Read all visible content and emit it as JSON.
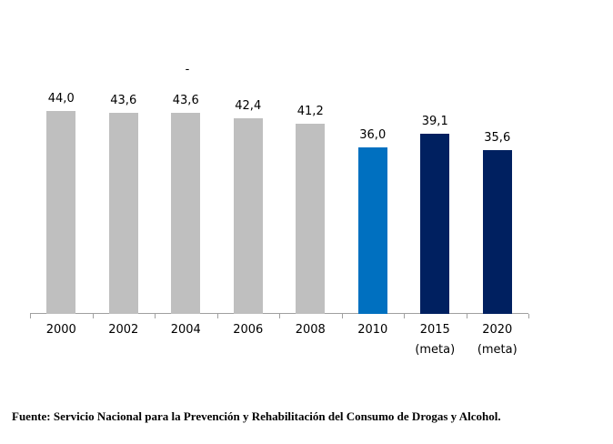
{
  "chart_data": {
    "type": "bar",
    "title": "-",
    "categories": [
      "2000",
      "2002",
      "2004",
      "2006",
      "2008",
      "2010",
      "2015",
      "2020"
    ],
    "category_sublabels": [
      "",
      "",
      "",
      "",
      "",
      "",
      "(meta)",
      "(meta)"
    ],
    "values": [
      44.0,
      43.6,
      43.6,
      42.4,
      41.2,
      36.0,
      39.1,
      35.6
    ],
    "value_labels": [
      "44,0",
      "43,6",
      "43,6",
      "42,4",
      "41,2",
      "36,0",
      "39,1",
      "35,6"
    ],
    "bar_colors": [
      "#bfbfbf",
      "#bfbfbf",
      "#bfbfbf",
      "#bfbfbf",
      "#bfbfbf",
      "#0070c0",
      "#002060",
      "#002060"
    ],
    "palette": {
      "historic_gray": "#bfbfbf",
      "current_blue": "#0070c0",
      "target_navy": "#002060",
      "axis_gray": "#a0a0a0",
      "label_black": "#000000"
    },
    "xlabel": "",
    "ylabel": "",
    "ylim": [
      0,
      50
    ],
    "grid": false,
    "legend": "none",
    "decimal_separator": ","
  },
  "footer": {
    "source_text": "Fuente: Servicio Nacional para la Prevención y Rehabilitación del Consumo de Drogas y Alcohol."
  }
}
